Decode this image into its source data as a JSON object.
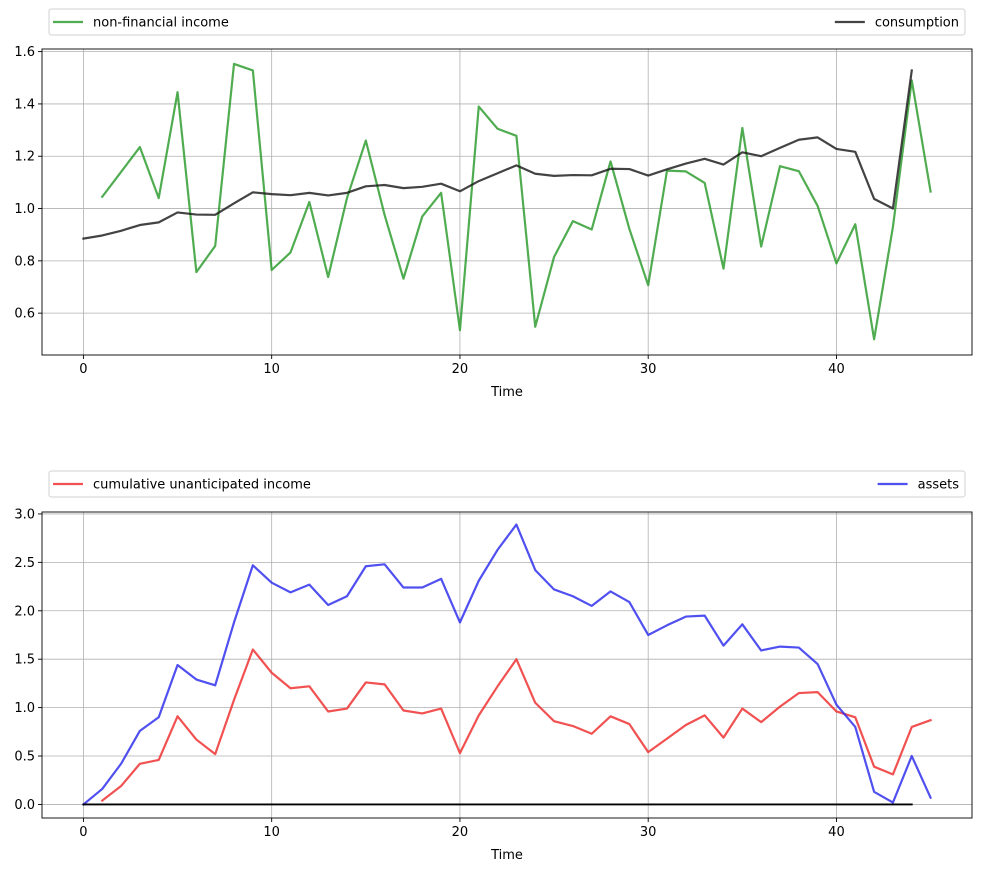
{
  "chart_data": [
    {
      "type": "line",
      "title": "",
      "xlabel": "Time",
      "ylabel": "",
      "xlim": [
        -2.2,
        47.2
      ],
      "ylim": [
        0.44,
        1.61
      ],
      "xticks": [
        0,
        10,
        20,
        30,
        40
      ],
      "yticks": [
        0.6,
        0.8,
        1.0,
        1.2,
        1.4,
        1.6
      ],
      "ytick_labels": [
        "0.6",
        "0.8",
        "1.0",
        "1.2",
        "1.4",
        "1.6"
      ],
      "grid": true,
      "legend_placement": "above plot, expanded across width",
      "series": [
        {
          "name": "non-financial income",
          "color": "#2a9a2a",
          "x_start": 1,
          "values": [
            1.045,
            1.14,
            1.235,
            1.04,
            1.445,
            0.757,
            0.857,
            1.553,
            1.528,
            0.765,
            0.832,
            1.025,
            0.738,
            1.04,
            1.26,
            0.975,
            0.732,
            0.97,
            1.06,
            0.535,
            1.39,
            1.305,
            1.278,
            0.548,
            0.815,
            0.952,
            0.92,
            1.18,
            0.922,
            0.707,
            1.145,
            1.142,
            1.098,
            0.77,
            1.308,
            0.855,
            1.162,
            1.143,
            1.01,
            0.79,
            0.94,
            0.5,
            0.93,
            1.49,
            1.065
          ]
        },
        {
          "name": "consumption",
          "color": "#1a1a1a",
          "x_start": 0,
          "values": [
            0.885,
            0.897,
            0.915,
            0.937,
            0.947,
            0.985,
            0.977,
            0.976,
            1.02,
            1.062,
            1.055,
            1.051,
            1.06,
            1.05,
            1.06,
            1.085,
            1.09,
            1.078,
            1.083,
            1.095,
            1.066,
            1.105,
            1.135,
            1.165,
            1.133,
            1.125,
            1.128,
            1.127,
            1.152,
            1.151,
            1.126,
            1.15,
            1.172,
            1.19,
            1.168,
            1.215,
            1.2,
            1.232,
            1.263,
            1.272,
            1.228,
            1.217,
            1.037,
            1.0,
            1.528
          ]
        }
      ]
    },
    {
      "type": "line",
      "title": "",
      "xlabel": "Time",
      "ylabel": "",
      "xlim": [
        -2.2,
        47.2
      ],
      "ylim": [
        -0.14,
        3.02
      ],
      "xticks": [
        0,
        10,
        20,
        30,
        40
      ],
      "yticks": [
        0.0,
        0.5,
        1.0,
        1.5,
        2.0,
        2.5,
        3.0
      ],
      "ytick_labels": [
        "0.0",
        "0.5",
        "1.0",
        "1.5",
        "2.0",
        "2.5",
        "3.0"
      ],
      "grid": true,
      "legend_placement": "above plot, expanded across width",
      "series": [
        {
          "name": "cumulative unanticipated income",
          "color": "#ee2b2b",
          "x_start": 1,
          "values": [
            0.04,
            0.19,
            0.42,
            0.46,
            0.91,
            0.67,
            0.52,
            1.08,
            1.6,
            1.36,
            1.2,
            1.22,
            0.96,
            0.99,
            1.26,
            1.24,
            0.97,
            0.94,
            0.99,
            0.53,
            0.92,
            1.22,
            1.5,
            1.05,
            0.86,
            0.81,
            0.73,
            0.91,
            0.83,
            0.54,
            0.68,
            0.82,
            0.92,
            0.69,
            0.99,
            0.85,
            1.01,
            1.15,
            1.16,
            0.96,
            0.9,
            0.39,
            0.31,
            0.8,
            0.87
          ]
        },
        {
          "name": "assets",
          "color": "#2a2aee",
          "x_start": 0,
          "values": [
            0.0,
            0.16,
            0.42,
            0.76,
            0.9,
            1.44,
            1.29,
            1.23,
            1.88,
            2.47,
            2.29,
            2.19,
            2.27,
            2.06,
            2.15,
            2.46,
            2.48,
            2.24,
            2.24,
            2.33,
            1.88,
            2.31,
            2.63,
            2.89,
            2.42,
            2.22,
            2.15,
            2.05,
            2.2,
            2.09,
            1.75,
            1.85,
            1.94,
            1.95,
            1.64,
            1.86,
            1.59,
            1.63,
            1.62,
            1.45,
            1.03,
            0.8,
            0.13,
            0.02,
            0.5,
            0.07
          ]
        },
        {
          "name": "",
          "color": "#000000",
          "x_start": 0,
          "values": [
            0,
            0,
            0,
            0,
            0,
            0,
            0,
            0,
            0,
            0,
            0,
            0,
            0,
            0,
            0,
            0,
            0,
            0,
            0,
            0,
            0,
            0,
            0,
            0,
            0,
            0,
            0,
            0,
            0,
            0,
            0,
            0,
            0,
            0,
            0,
            0,
            0,
            0,
            0,
            0,
            0,
            0,
            0,
            0,
            0
          ]
        }
      ]
    }
  ]
}
